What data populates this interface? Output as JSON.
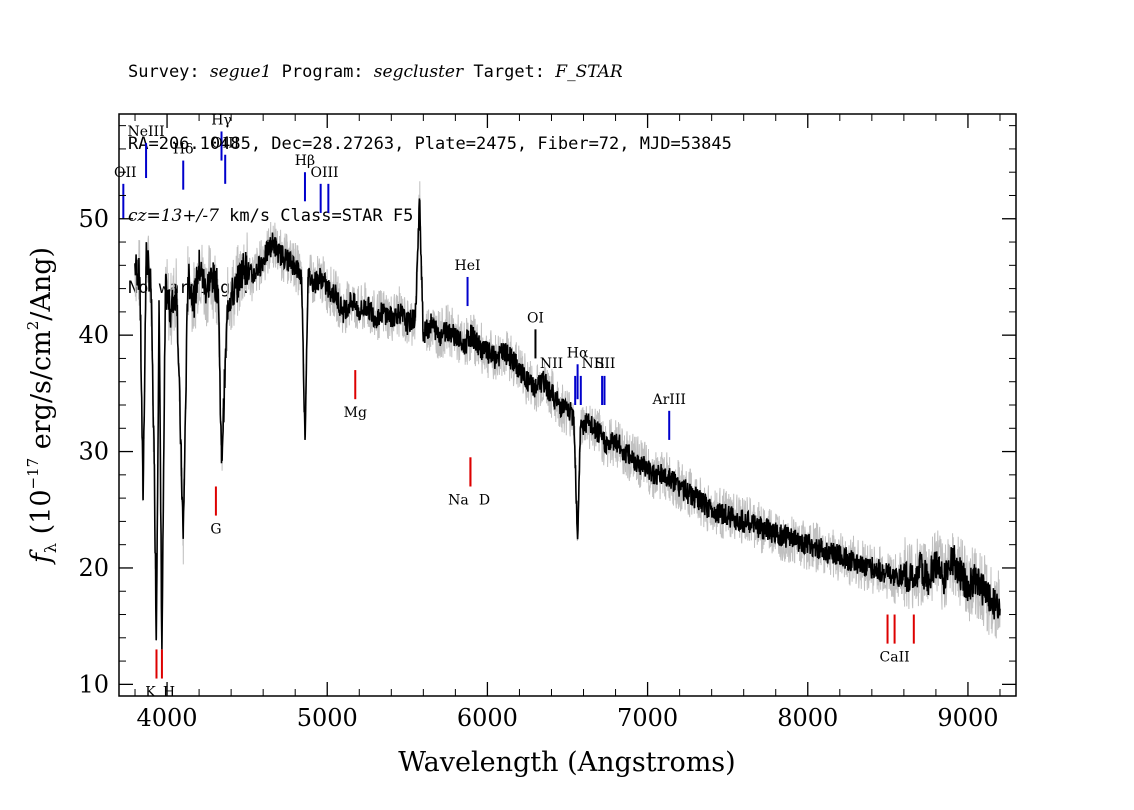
{
  "header": {
    "survey_label": "Survey:",
    "survey": "segue1",
    "program_label": "Program:",
    "program": "segcluster",
    "target_label": "Target:",
    "target": "F_STAR",
    "line2": "RA=206.10485, Dec=28.27263, Plate=2475, Fiber=72, MJD=53845",
    "cz": "cz=13+/-7",
    "line3_rest": " km/s Class=STAR F5",
    "line4": "No warnings."
  },
  "chart_data": {
    "type": "line",
    "xlabel": "Wavelength (Angstroms)",
    "ylabel": "f_λ (10^-17 erg/s/cm^2/Ang)",
    "xlim": [
      3700,
      9300
    ],
    "ylim": [
      9,
      59
    ],
    "grid": false,
    "x_ticks": [
      4000,
      5000,
      6000,
      7000,
      8000,
      9000
    ],
    "y_ticks": [
      10,
      20,
      30,
      40,
      50
    ],
    "x_tick_labels": [
      "4000",
      "5000",
      "6000",
      "7000",
      "8000",
      "9000"
    ],
    "y_tick_labels": [
      "10",
      "20",
      "30",
      "40",
      "50"
    ],
    "series": [
      {
        "role": "smoothed",
        "color": "#000000",
        "x": [
          3800,
          3830,
          3850,
          3870,
          3900,
          3920,
          3933,
          3950,
          3968,
          3990,
          4020,
          4060,
          4101,
          4130,
          4170,
          4200,
          4240,
          4280,
          4320,
          4340,
          4380,
          4430,
          4480,
          4530,
          4580,
          4620,
          4660,
          4700,
          4750,
          4800,
          4840,
          4861,
          4880,
          4920,
          4960,
          5000,
          5050,
          5100,
          5150,
          5200,
          5250,
          5300,
          5350,
          5400,
          5450,
          5500,
          5550,
          5577,
          5600,
          5650,
          5700,
          5750,
          5800,
          5850,
          5900,
          5950,
          6000,
          6050,
          6100,
          6150,
          6200,
          6250,
          6300,
          6350,
          6400,
          6450,
          6500,
          6540,
          6563,
          6580,
          6620,
          6660,
          6700,
          6750,
          6800,
          6850,
          6900,
          6950,
          7000,
          7050,
          7100,
          7150,
          7200,
          7300,
          7400,
          7500,
          7600,
          7700,
          7800,
          7900,
          8000,
          8100,
          8200,
          8300,
          8400,
          8500,
          8542,
          8600,
          8662,
          8700,
          8750,
          8800,
          8850,
          8900,
          8950,
          9000,
          9050,
          9100,
          9150,
          9200
        ],
        "y": [
          46,
          45,
          26,
          47,
          44,
          29,
          14,
          43,
          13,
          44,
          42,
          44,
          22.5,
          45,
          43,
          46,
          44,
          45,
          44,
          29,
          43,
          44,
          46,
          45,
          46,
          47,
          48,
          47,
          46.5,
          46,
          45,
          31,
          45,
          44.5,
          45,
          44,
          43.5,
          42,
          43,
          42,
          42.5,
          41.5,
          42,
          41.5,
          42,
          41,
          41.5,
          51.5,
          40,
          41,
          40,
          40.5,
          40,
          39,
          40,
          39,
          38.5,
          38,
          38.5,
          38,
          37,
          36,
          35.5,
          36,
          35,
          34,
          33.5,
          33,
          22.5,
          32,
          32.5,
          32,
          31.5,
          30.5,
          31,
          30,
          29.5,
          29,
          28.5,
          28,
          28,
          27.5,
          27,
          26,
          25,
          24.5,
          24,
          23.5,
          23,
          22.5,
          22,
          21.5,
          21,
          20.5,
          20,
          19.5,
          19,
          19.5,
          19,
          20,
          19,
          20.5,
          19,
          21,
          19.5,
          18.5,
          19,
          18,
          17,
          16.5
        ]
      },
      {
        "role": "raw",
        "color": "#c0c0c0",
        "note": "unsmoothed flux drawn as gray envelope around the smoothed series"
      }
    ],
    "lines": [
      {
        "label": "OII",
        "wave": 3727,
        "color": "blue",
        "y": [
          50,
          53
        ]
      },
      {
        "label": "NeIII",
        "wave": 3869,
        "color": "blue",
        "y": [
          53.5,
          56.5
        ]
      },
      {
        "label": "Hδ",
        "wave": 4101,
        "color": "blue",
        "y": [
          52.5,
          55
        ]
      },
      {
        "label": "Hγ",
        "wave": 4340,
        "color": "blue",
        "y": [
          55,
          57.5
        ]
      },
      {
        "label": "OIII",
        "wave": 4363,
        "color": "blue",
        "y": [
          53,
          55.5
        ]
      },
      {
        "label": "Hβ",
        "wave": 4861,
        "color": "blue",
        "y": [
          51.5,
          54
        ]
      },
      {
        "label": "OIII",
        "wave": 4959,
        "color": "blue",
        "y": [
          50.5,
          53
        ]
      },
      {
        "label": "OIII",
        "wave": 5007,
        "color": "blue",
        "y": [
          50.5,
          53
        ]
      },
      {
        "label": "HeI",
        "wave": 5876,
        "color": "blue",
        "y": [
          42.5,
          45
        ]
      },
      {
        "label": "OI",
        "wave": 6300,
        "color": "black",
        "y": [
          38,
          40.5
        ]
      },
      {
        "label": "NII",
        "wave": 6548,
        "color": "blue",
        "y": [
          34,
          36.5
        ]
      },
      {
        "label": "Hα",
        "wave": 6563,
        "color": "blue",
        "y": [
          34.5,
          37.5
        ]
      },
      {
        "label": "NII",
        "wave": 6583,
        "color": "blue",
        "y": [
          34,
          36.5
        ]
      },
      {
        "label": "SII",
        "wave": 6716,
        "color": "blue",
        "y": [
          34,
          36.5
        ]
      },
      {
        "label": "SII",
        "wave": 6731,
        "color": "blue",
        "y": [
          34,
          36.5
        ]
      },
      {
        "label": "ArIII",
        "wave": 7135,
        "color": "blue",
        "y": [
          31,
          33.5
        ]
      },
      {
        "label": "K",
        "wave": 3934,
        "color": "red",
        "y": [
          10.5,
          13
        ]
      },
      {
        "label": "H",
        "wave": 3968,
        "color": "red",
        "y": [
          10.5,
          13
        ]
      },
      {
        "label": "G",
        "wave": 4305,
        "color": "red",
        "y": [
          24.5,
          27
        ]
      },
      {
        "label": "Mg",
        "wave": 5175,
        "color": "red",
        "y": [
          34.5,
          37
        ]
      },
      {
        "label": "Na",
        "wave": 5894,
        "color": "red",
        "y": [
          27,
          29.5
        ]
      },
      {
        "label": "D",
        "wave": 5894,
        "color": "red",
        "y": [
          27,
          29.5
        ]
      },
      {
        "label": "CaII",
        "wave": 8498,
        "color": "red",
        "y": [
          13.5,
          16
        ]
      },
      {
        "label": "CaII",
        "wave": 8542,
        "color": "red",
        "y": [
          13.5,
          16
        ]
      },
      {
        "label": "CaII",
        "wave": 8662,
        "color": "red",
        "y": [
          13.5,
          16
        ]
      }
    ]
  }
}
